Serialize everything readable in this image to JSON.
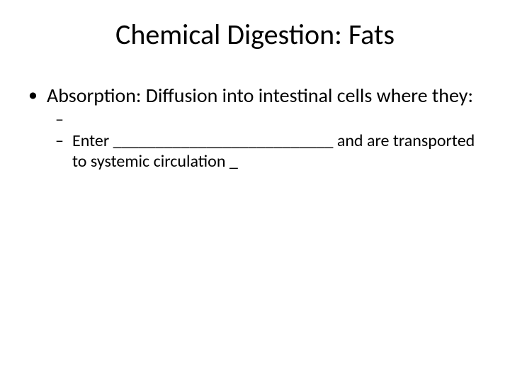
{
  "slide": {
    "title": "Chemical Digestion: Fats",
    "title_fontsize": 40,
    "body_fontsize": 28,
    "sub_fontsize": 24,
    "text_color": "#000000",
    "background_color": "#ffffff",
    "bullets": {
      "lvl1": {
        "marker": "•",
        "text": "Absorption: Diffusion into intestinal cells where they:"
      },
      "sub1": {
        "marker": "–",
        "text": ""
      },
      "sub2": {
        "marker": "–",
        "text": "Enter __________________________ and are transported to systemic circulation _"
      }
    }
  }
}
